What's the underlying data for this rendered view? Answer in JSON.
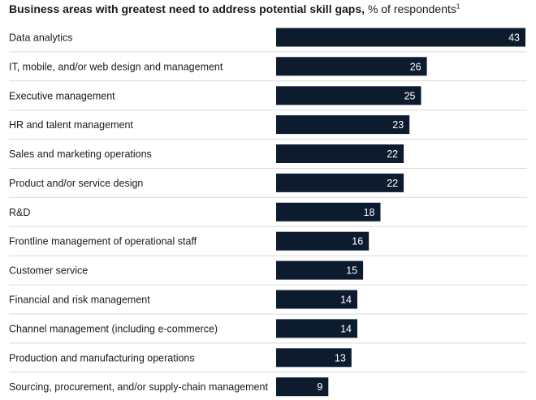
{
  "chart_data": {
    "type": "bar",
    "orientation": "horizontal",
    "title": "Business areas with greatest need to address potential skill gaps,",
    "subtitle": "% of respondents",
    "footnote_marker": "1",
    "categories": [
      "Data analytics",
      "IT, mobile, and/or web design and management",
      "Executive management",
      "HR and talent management",
      "Sales and marketing operations",
      "Product and/or service design",
      "R&D",
      "Frontline management of operational staff",
      "Customer service",
      "Financial and risk management",
      "Channel management (including e-commerce)",
      "Production and manufacturing operations",
      "Sourcing, procurement, and/or supply-chain management"
    ],
    "values": [
      43,
      26,
      25,
      23,
      22,
      22,
      18,
      16,
      15,
      14,
      14,
      13,
      9
    ],
    "xlim": [
      0,
      43
    ],
    "bar_color": "#0c1b2e",
    "label_color": "#ffffff",
    "grid": false
  }
}
